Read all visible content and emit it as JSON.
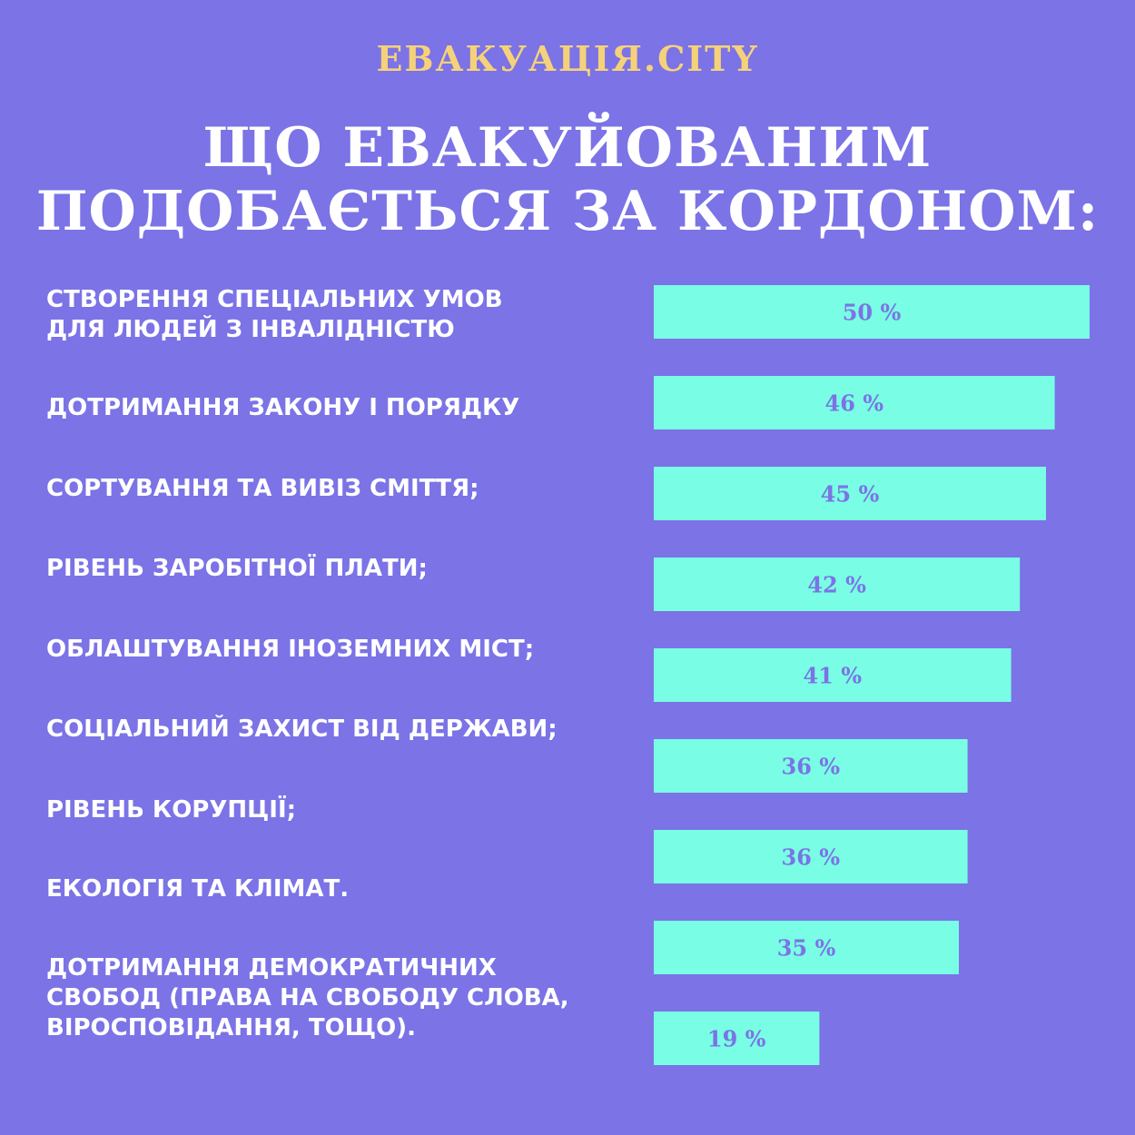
{
  "brand": "ЕВАКУАЦІЯ.CITY",
  "title_lines": [
    "ЩО ЕВАКУЙОВАНИМ",
    "ПОДОБАЄТЬСЯ ЗА КОРДОНОМ:"
  ],
  "colors": {
    "background": "#7b73e6",
    "bar": "#79fde4",
    "brand": "#f5d27a",
    "text": "#ffffff"
  },
  "labels": [
    "СТВОРЕННЯ СПЕЦІАЛЬНИХ УМОВ\nДЛЯ ЛЮДЕЙ З ІНВАЛІДНІСТЮ",
    "ДОТРИМАННЯ ЗАКОНУ І ПОРЯДКУ",
    "СОРТУВАННЯ ТА ВИВІЗ СМІТТЯ;",
    "РІВЕНЬ ЗАРОБІТНОЇ ПЛАТИ;",
    "ОБЛАШТУВАННЯ ІНОЗЕМНИХ МІСТ;",
    "СОЦІАЛЬНИЙ ЗАХИСТ ВІД ДЕРЖАВИ;",
    "РІВЕНЬ КОРУПЦІЇ;",
    "ЕКОЛОГІЯ ТА КЛІМАТ.",
    "ДОТРИМАННЯ ДЕМОКРАТИЧНИХ\nСВОБОД (ПРАВА НА СВОБОДУ СЛОВА,\nВІРОСПОВІДАННЯ, ТОЩО)."
  ],
  "chart_data": {
    "type": "bar",
    "orientation": "horizontal",
    "unit": "%",
    "values": [
      50,
      46,
      45,
      42,
      41,
      36,
      36,
      35,
      19
    ],
    "value_labels": [
      "50 %",
      "46 %",
      "45 %",
      "42 %",
      "41 %",
      "36 %",
      "36 %",
      "35 %",
      "19 %"
    ]
  }
}
